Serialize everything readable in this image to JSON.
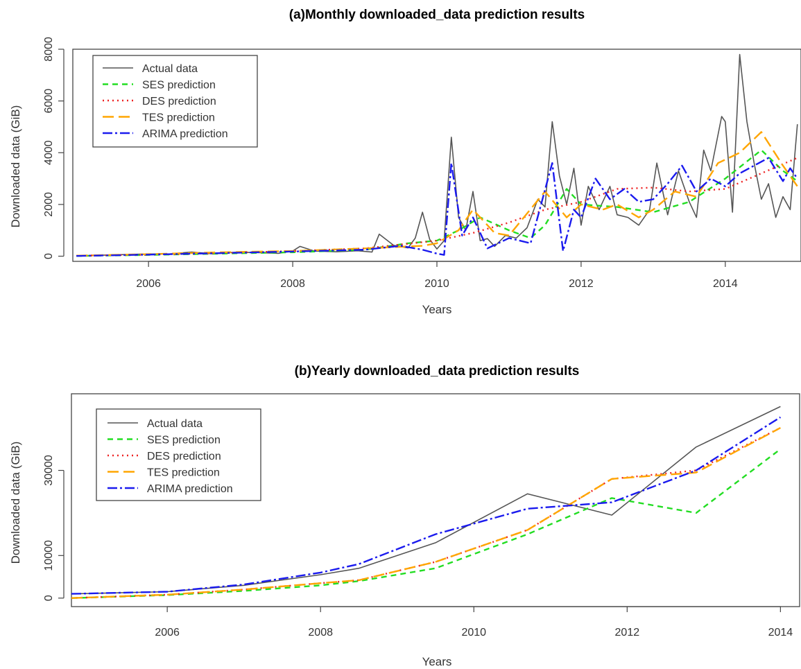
{
  "chart_data": [
    {
      "id": "monthly",
      "type": "line",
      "title": "(a)Monthly downloaded_data prediction results",
      "xlabel": "Years",
      "ylabel": "Downloaded data (GiB)",
      "xlim": [
        2004.95,
        2015.05
      ],
      "ylim": [
        -200,
        8000
      ],
      "xticks": [
        2006,
        2008,
        2010,
        2012,
        2014
      ],
      "yticks": [
        0,
        2000,
        4000,
        6000,
        8000
      ],
      "legend_position": "top-left",
      "series": [
        {
          "name": "Actual data",
          "color": "#555555",
          "dash": "",
          "width": 1.6,
          "points": [
            [
              2005.0,
              10
            ],
            [
              2005.5,
              50
            ],
            [
              2005.9,
              80
            ],
            [
              2006.3,
              90
            ],
            [
              2006.6,
              160
            ],
            [
              2006.9,
              90
            ],
            [
              2007.2,
              150
            ],
            [
              2007.5,
              140
            ],
            [
              2007.8,
              110
            ],
            [
              2008.0,
              200
            ],
            [
              2008.1,
              380
            ],
            [
              2008.3,
              200
            ],
            [
              2008.6,
              170
            ],
            [
              2008.9,
              210
            ],
            [
              2009.1,
              160
            ],
            [
              2009.2,
              850
            ],
            [
              2009.4,
              420
            ],
            [
              2009.6,
              320
            ],
            [
              2009.7,
              700
            ],
            [
              2009.8,
              1700
            ],
            [
              2009.9,
              650
            ],
            [
              2010.0,
              280
            ],
            [
              2010.1,
              600
            ],
            [
              2010.2,
              4600
            ],
            [
              2010.3,
              1500
            ],
            [
              2010.4,
              1000
            ],
            [
              2010.5,
              2500
            ],
            [
              2010.6,
              600
            ],
            [
              2010.7,
              680
            ],
            [
              2010.8,
              380
            ],
            [
              2010.95,
              800
            ],
            [
              2011.1,
              700
            ],
            [
              2011.25,
              1100
            ],
            [
              2011.4,
              2200
            ],
            [
              2011.5,
              1900
            ],
            [
              2011.6,
              5200
            ],
            [
              2011.7,
              3100
            ],
            [
              2011.8,
              2000
            ],
            [
              2011.9,
              3400
            ],
            [
              2012.0,
              1200
            ],
            [
              2012.1,
              2700
            ],
            [
              2012.25,
              1800
            ],
            [
              2012.4,
              2700
            ],
            [
              2012.5,
              1600
            ],
            [
              2012.65,
              1500
            ],
            [
              2012.8,
              1200
            ],
            [
              2012.95,
              1800
            ],
            [
              2013.05,
              3600
            ],
            [
              2013.2,
              1600
            ],
            [
              2013.35,
              3300
            ],
            [
              2013.5,
              2100
            ],
            [
              2013.6,
              1500
            ],
            [
              2013.7,
              4100
            ],
            [
              2013.8,
              3300
            ],
            [
              2013.95,
              5400
            ],
            [
              2014.0,
              5200
            ],
            [
              2014.1,
              1700
            ],
            [
              2014.2,
              7800
            ],
            [
              2014.3,
              5200
            ],
            [
              2014.4,
              3600
            ],
            [
              2014.5,
              2200
            ],
            [
              2014.6,
              2800
            ],
            [
              2014.7,
              1500
            ],
            [
              2014.8,
              2300
            ],
            [
              2014.9,
              1800
            ],
            [
              2015.0,
              5100
            ]
          ]
        },
        {
          "name": "SES prediction",
          "color": "#22dd22",
          "dash": "8 6",
          "width": 2.4,
          "points": [
            [
              2005.0,
              10
            ],
            [
              2006.0,
              50
            ],
            [
              2007.0,
              100
            ],
            [
              2008.0,
              150
            ],
            [
              2009.0,
              250
            ],
            [
              2009.6,
              500
            ],
            [
              2010.0,
              600
            ],
            [
              2010.3,
              1000
            ],
            [
              2010.6,
              1500
            ],
            [
              2011.0,
              1000
            ],
            [
              2011.3,
              700
            ],
            [
              2011.5,
              1200
            ],
            [
              2011.8,
              2600
            ],
            [
              2012.0,
              2000
            ],
            [
              2012.5,
              1900
            ],
            [
              2013.0,
              1700
            ],
            [
              2013.5,
              2100
            ],
            [
              2014.0,
              3000
            ],
            [
              2014.5,
              4100
            ],
            [
              2014.8,
              3300
            ],
            [
              2015.0,
              2900
            ]
          ]
        },
        {
          "name": "DES prediction",
          "color": "#ee2222",
          "dash": "2 5",
          "width": 2.4,
          "points": [
            [
              2005.0,
              20
            ],
            [
              2006.0,
              60
            ],
            [
              2007.0,
              120
            ],
            [
              2008.0,
              200
            ],
            [
              2009.0,
              300
            ],
            [
              2010.0,
              600
            ],
            [
              2010.5,
              900
            ],
            [
              2011.0,
              1300
            ],
            [
              2011.5,
              1800
            ],
            [
              2012.0,
              2100
            ],
            [
              2012.5,
              2600
            ],
            [
              2013.0,
              2650
            ],
            [
              2013.5,
              2500
            ],
            [
              2014.0,
              2600
            ],
            [
              2014.5,
              3200
            ],
            [
              2015.0,
              3800
            ]
          ]
        },
        {
          "name": "TES prediction",
          "color": "#ffa500",
          "dash": "16 7",
          "width": 2.4,
          "points": [
            [
              2005.0,
              20
            ],
            [
              2006.0,
              80
            ],
            [
              2007.0,
              150
            ],
            [
              2008.0,
              200
            ],
            [
              2009.0,
              300
            ],
            [
              2009.8,
              400
            ],
            [
              2010.0,
              500
            ],
            [
              2010.3,
              1000
            ],
            [
              2010.5,
              1800
            ],
            [
              2010.8,
              900
            ],
            [
              2011.0,
              800
            ],
            [
              2011.5,
              2500
            ],
            [
              2011.8,
              1500
            ],
            [
              2012.0,
              2000
            ],
            [
              2012.3,
              1800
            ],
            [
              2012.5,
              2000
            ],
            [
              2012.8,
              1500
            ],
            [
              2013.0,
              1800
            ],
            [
              2013.3,
              2500
            ],
            [
              2013.6,
              2300
            ],
            [
              2013.9,
              3600
            ],
            [
              2014.2,
              4000
            ],
            [
              2014.5,
              4800
            ],
            [
              2014.8,
              3500
            ],
            [
              2015.0,
              2700
            ]
          ]
        },
        {
          "name": "ARIMA prediction",
          "color": "#1a1aee",
          "dash": "14 4 3 4",
          "width": 2.4,
          "points": [
            [
              2005.0,
              10
            ],
            [
              2006.0,
              60
            ],
            [
              2007.0,
              120
            ],
            [
              2008.0,
              180
            ],
            [
              2009.0,
              250
            ],
            [
              2009.5,
              400
            ],
            [
              2009.8,
              250
            ],
            [
              2010.0,
              100
            ],
            [
              2010.1,
              50
            ],
            [
              2010.2,
              3600
            ],
            [
              2010.35,
              800
            ],
            [
              2010.5,
              1500
            ],
            [
              2010.7,
              300
            ],
            [
              2011.0,
              700
            ],
            [
              2011.3,
              500
            ],
            [
              2011.6,
              3600
            ],
            [
              2011.75,
              200
            ],
            [
              2011.9,
              1800
            ],
            [
              2012.0,
              1500
            ],
            [
              2012.2,
              3000
            ],
            [
              2012.4,
              2200
            ],
            [
              2012.6,
              2600
            ],
            [
              2012.8,
              2100
            ],
            [
              2013.0,
              2200
            ],
            [
              2013.2,
              2800
            ],
            [
              2013.4,
              3500
            ],
            [
              2013.6,
              2500
            ],
            [
              2013.8,
              3000
            ],
            [
              2014.0,
              2700
            ],
            [
              2014.2,
              3200
            ],
            [
              2014.4,
              3500
            ],
            [
              2014.6,
              3800
            ],
            [
              2014.8,
              2900
            ],
            [
              2014.9,
              3400
            ],
            [
              2015.0,
              3000
            ]
          ]
        }
      ]
    },
    {
      "id": "yearly",
      "type": "line",
      "title": "(b)Yearly downloaded_data prediction results",
      "xlabel": "Years",
      "ylabel": "Downloaded data (GiB)",
      "xlim": [
        2004.75,
        2014.25
      ],
      "ylim": [
        -2000,
        48000
      ],
      "xticks": [
        2006,
        2008,
        2010,
        2012,
        2014
      ],
      "yticks": [
        0,
        10000,
        30000
      ],
      "legend_position": "top-left",
      "series": [
        {
          "name": "Actual data",
          "color": "#555555",
          "dash": "",
          "width": 1.6,
          "points": [
            [
              2004.75,
              1000
            ],
            [
              2006.0,
              1500
            ],
            [
              2007.0,
              3000
            ],
            [
              2008.0,
              5500
            ],
            [
              2008.5,
              7000
            ],
            [
              2009.5,
              13000
            ],
            [
              2010.7,
              24500
            ],
            [
              2011.8,
              19500
            ],
            [
              2012.9,
              35500
            ],
            [
              2014.0,
              45000
            ]
          ]
        },
        {
          "name": "SES prediction",
          "color": "#22dd22",
          "dash": "8 6",
          "width": 2.4,
          "points": [
            [
              2004.75,
              0
            ],
            [
              2006.0,
              700
            ],
            [
              2007.0,
              1700
            ],
            [
              2008.0,
              3000
            ],
            [
              2008.5,
              4000
            ],
            [
              2009.5,
              7000
            ],
            [
              2010.7,
              15000
            ],
            [
              2011.8,
              23500
            ],
            [
              2012.9,
              20000
            ],
            [
              2014.0,
              35000
            ]
          ]
        },
        {
          "name": "DES prediction",
          "color": "#ee2222",
          "dash": "2 5",
          "width": 2.4,
          "points": [
            [
              2004.75,
              0
            ],
            [
              2006.0,
              800
            ],
            [
              2007.0,
              2000
            ],
            [
              2008.0,
              3500
            ],
            [
              2008.5,
              4200
            ],
            [
              2009.5,
              8500
            ],
            [
              2010.7,
              16000
            ],
            [
              2011.8,
              28000
            ],
            [
              2012.9,
              30000
            ],
            [
              2014.0,
              40000
            ]
          ]
        },
        {
          "name": "TES prediction",
          "color": "#ffa500",
          "dash": "16 7",
          "width": 2.4,
          "points": [
            [
              2004.75,
              0
            ],
            [
              2006.0,
              800
            ],
            [
              2007.0,
              2000
            ],
            [
              2008.0,
              3500
            ],
            [
              2008.5,
              4200
            ],
            [
              2009.5,
              8500
            ],
            [
              2010.7,
              16000
            ],
            [
              2011.8,
              28000
            ],
            [
              2012.9,
              29500
            ],
            [
              2014.0,
              40000
            ]
          ]
        },
        {
          "name": "ARIMA prediction",
          "color": "#1a1aee",
          "dash": "14 4 3 4",
          "width": 2.4,
          "points": [
            [
              2004.75,
              1000
            ],
            [
              2006.0,
              1500
            ],
            [
              2007.0,
              3200
            ],
            [
              2008.0,
              6000
            ],
            [
              2008.5,
              8000
            ],
            [
              2009.5,
              15000
            ],
            [
              2010.7,
              21000
            ],
            [
              2011.8,
              22500
            ],
            [
              2012.9,
              30000
            ],
            [
              2014.0,
              42500
            ]
          ]
        }
      ]
    }
  ]
}
